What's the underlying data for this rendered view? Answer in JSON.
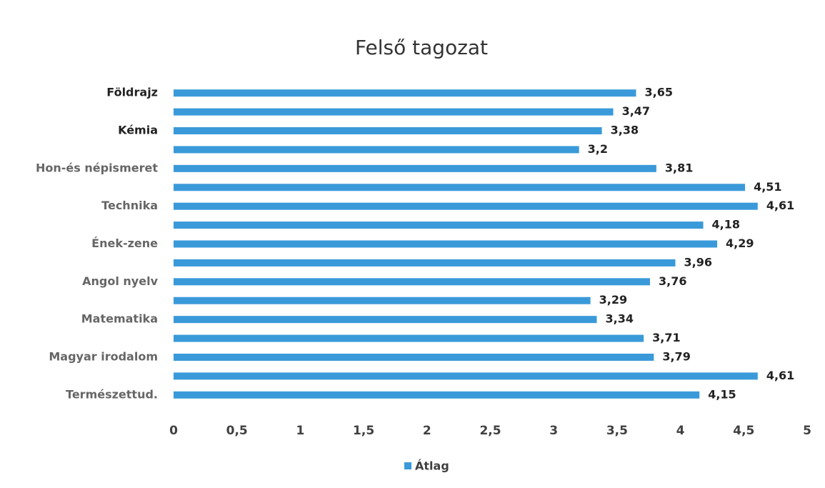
{
  "chart_data": {
    "type": "barh",
    "title": "Felső tagozat",
    "categories": [
      "Földrajz",
      null,
      "Kémia",
      null,
      "Hon-és népismeret",
      null,
      "Technika",
      null,
      "Ének-zene",
      null,
      "Angol nyelv",
      null,
      "Matematika",
      null,
      "Magyar irodalom",
      null,
      "Természettud."
    ],
    "series": [
      {
        "name": "Átlag",
        "color": "#3a9ad9",
        "values": [
          3.65,
          3.47,
          3.38,
          3.2,
          3.81,
          4.51,
          4.61,
          4.18,
          4.29,
          3.96,
          3.76,
          3.29,
          3.34,
          3.71,
          3.79,
          4.61,
          4.15
        ],
        "value_labels": [
          "3,65",
          "3,47",
          "3,38",
          "3,2",
          "3,81",
          "4,51",
          "4,61",
          "4,18",
          "4,29",
          "3,96",
          "3,76",
          "3,29",
          "3,34",
          "3,71",
          "3,79",
          "4,61",
          "4,15"
        ]
      }
    ],
    "xlim": [
      0,
      5
    ],
    "xticks": [
      0,
      {
        "value": 0.5,
        "label": "0,5"
      },
      1,
      {
        "value": 1.5,
        "label": "1,5"
      },
      2,
      {
        "value": 2.5,
        "label": "2,5"
      },
      3,
      {
        "value": 3.5,
        "label": "3,5"
      },
      4,
      {
        "value": 4.5,
        "label": "4,5"
      },
      5
    ],
    "legend": "bottom",
    "grid": false
  }
}
